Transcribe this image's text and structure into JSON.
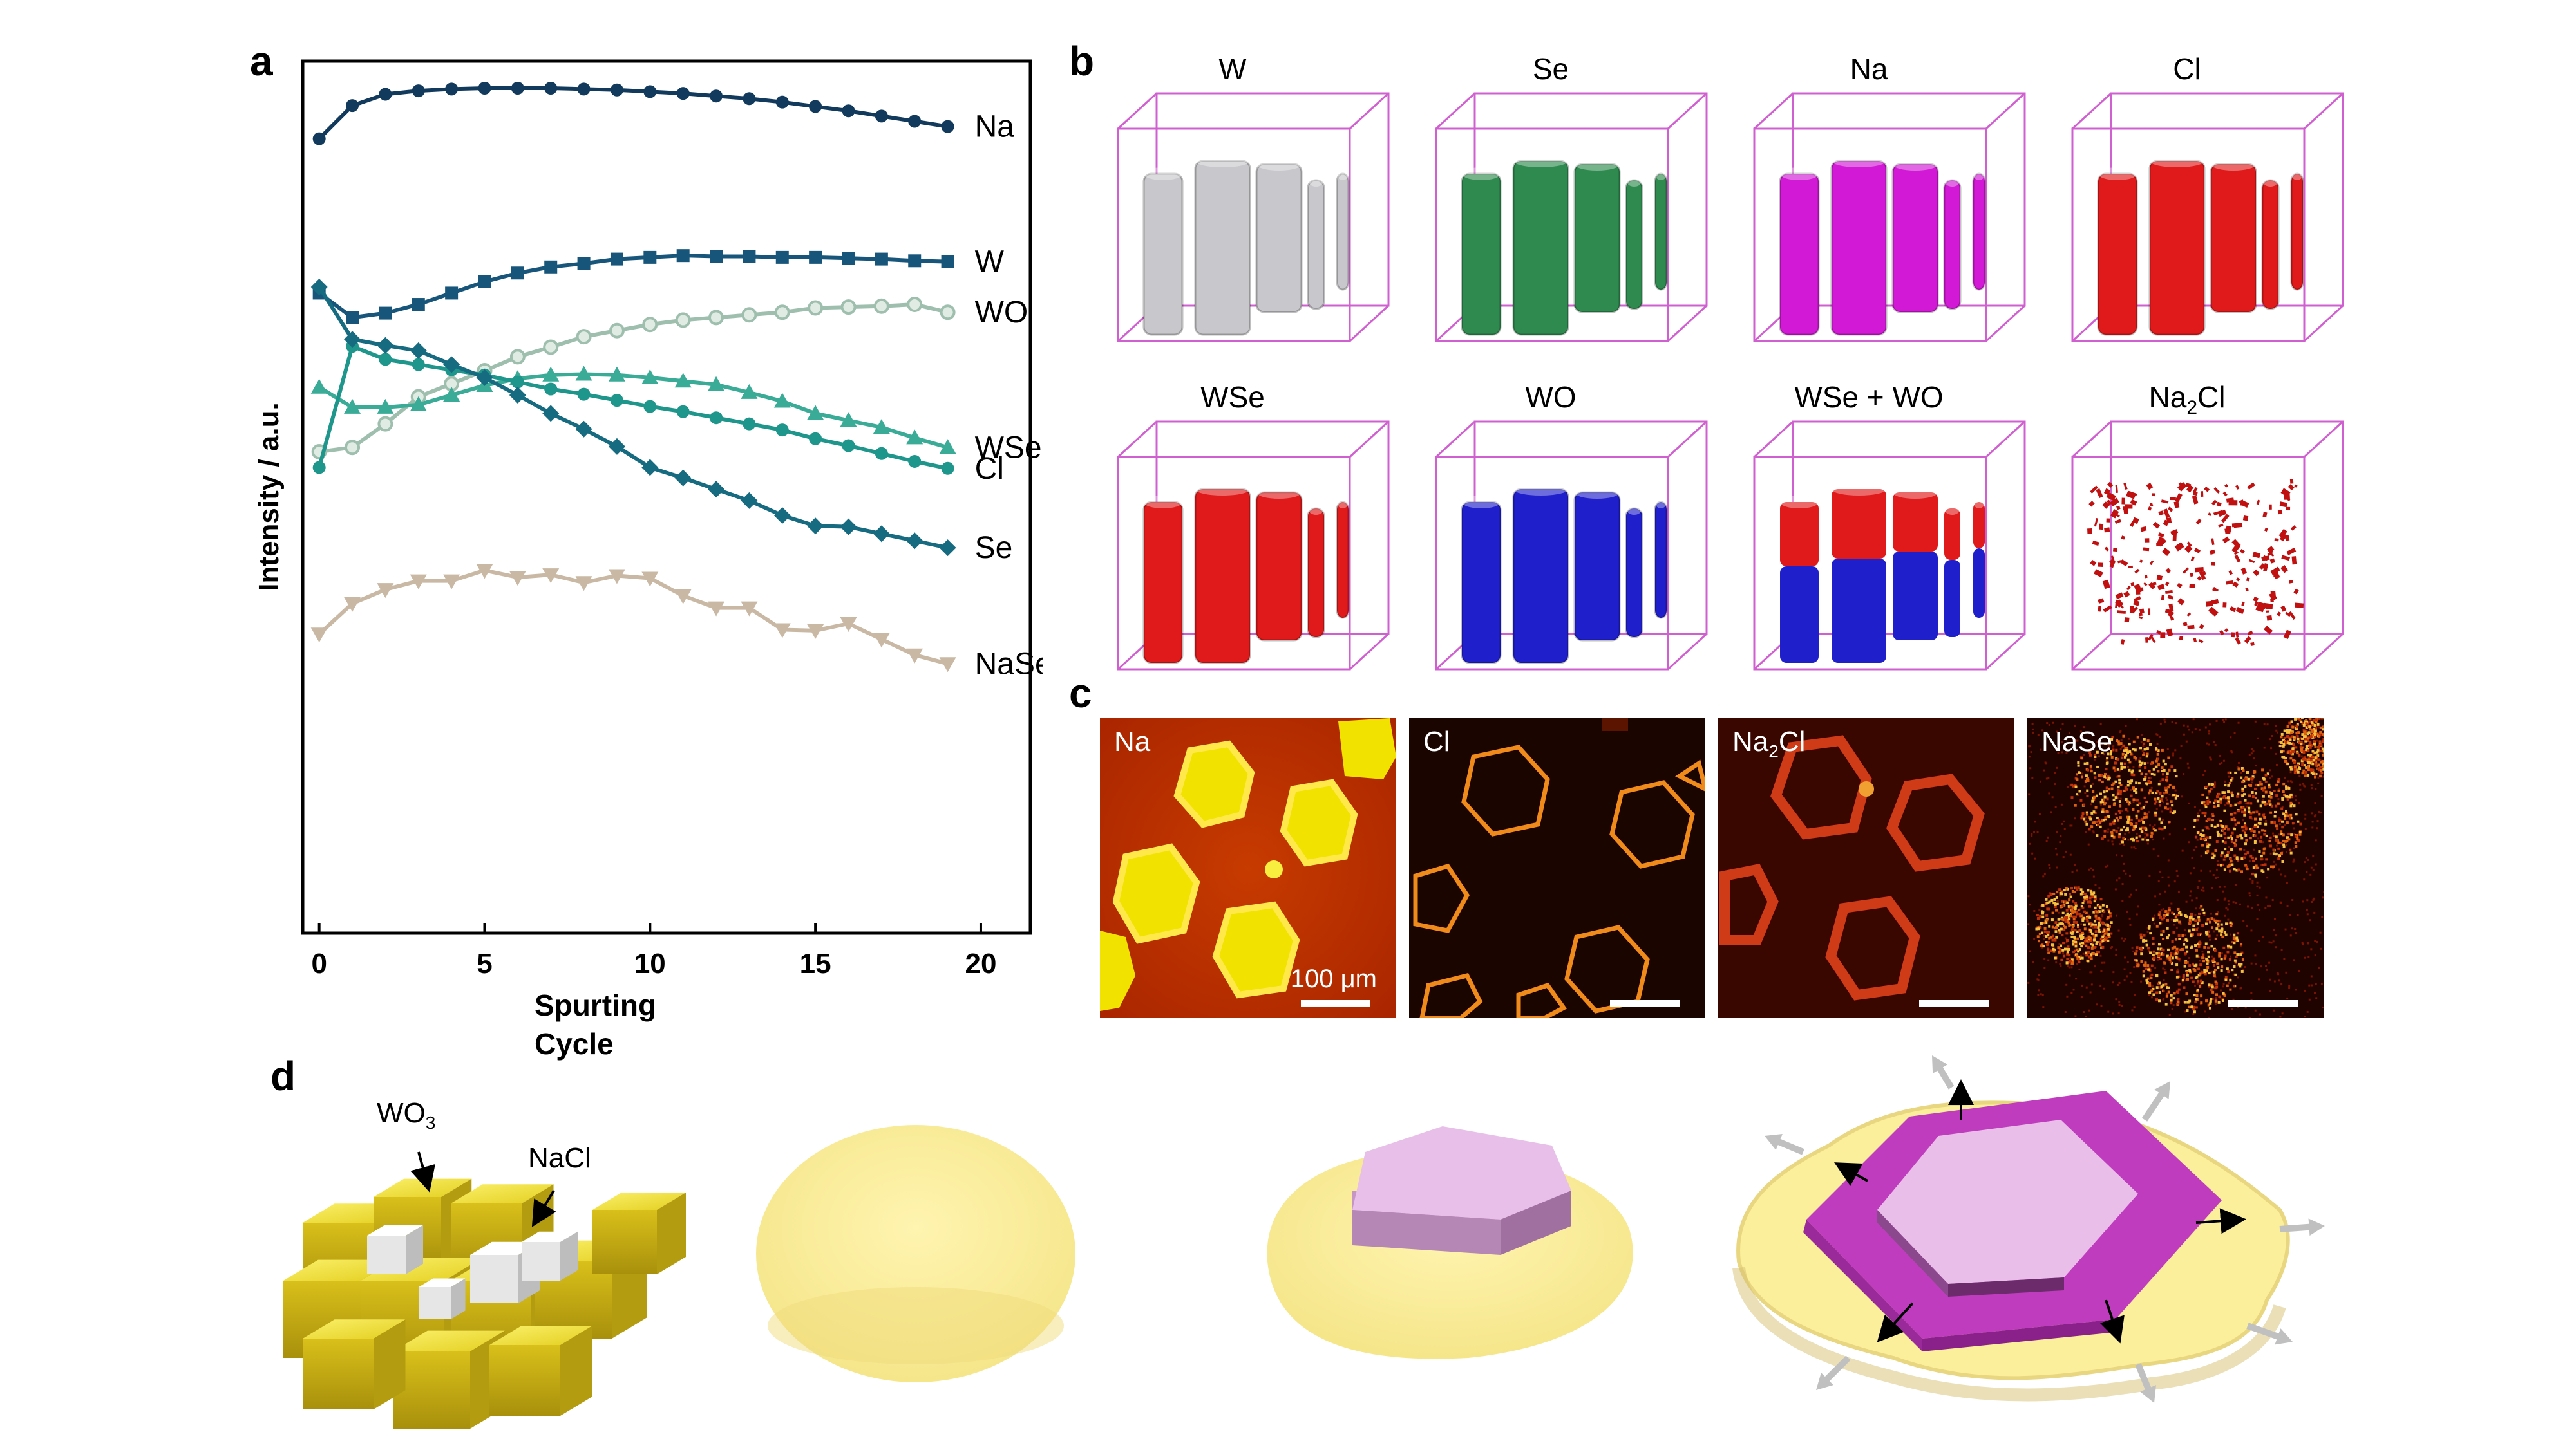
{
  "panels": {
    "a": "a",
    "b": "b",
    "c": "c",
    "d": "d"
  },
  "chart_data": {
    "type": "line",
    "xlabel": "Spurting Cycle",
    "ylabel": "Intensity / a.u.",
    "xlim": [
      -0.5,
      21.5
    ],
    "ylim": [
      0,
      1
    ],
    "xticks": [
      0,
      5,
      10,
      15,
      20
    ],
    "grid": false,
    "x": [
      0,
      1,
      2,
      3,
      4,
      5,
      6,
      7,
      8,
      9,
      10,
      11,
      12,
      13,
      14,
      15,
      16,
      17,
      18,
      19
    ],
    "series": [
      {
        "name": "Na",
        "color": "#123a5c",
        "marker": "circle",
        "values": [
          0.911,
          0.949,
          0.962,
          0.966,
          0.968,
          0.969,
          0.969,
          0.969,
          0.968,
          0.967,
          0.965,
          0.963,
          0.96,
          0.957,
          0.953,
          0.948,
          0.943,
          0.937,
          0.931,
          0.925
        ]
      },
      {
        "name": "W",
        "color": "#17567a",
        "marker": "square",
        "values": [
          0.734,
          0.706,
          0.711,
          0.721,
          0.734,
          0.747,
          0.757,
          0.764,
          0.768,
          0.773,
          0.775,
          0.777,
          0.776,
          0.776,
          0.775,
          0.775,
          0.774,
          0.773,
          0.771,
          0.77
        ]
      },
      {
        "name": "WO",
        "color": "#9fbfae",
        "marker": "circle-open",
        "values": [
          0.552,
          0.557,
          0.584,
          0.615,
          0.63,
          0.645,
          0.661,
          0.672,
          0.684,
          0.691,
          0.698,
          0.703,
          0.706,
          0.709,
          0.712,
          0.717,
          0.718,
          0.719,
          0.721,
          0.712
        ]
      },
      {
        "name": "WSe",
        "color": "#39ab97",
        "marker": "triangle",
        "values": [
          0.626,
          0.603,
          0.603,
          0.606,
          0.617,
          0.628,
          0.636,
          0.64,
          0.641,
          0.64,
          0.637,
          0.633,
          0.629,
          0.62,
          0.61,
          0.596,
          0.588,
          0.58,
          0.568,
          0.557
        ]
      },
      {
        "name": "Cl",
        "color": "#1e968c",
        "marker": "circle",
        "values": [
          0.534,
          0.673,
          0.658,
          0.652,
          0.646,
          0.64,
          0.632,
          0.624,
          0.618,
          0.611,
          0.604,
          0.598,
          0.591,
          0.584,
          0.577,
          0.567,
          0.559,
          0.55,
          0.541,
          0.533
        ]
      },
      {
        "name": "Se",
        "color": "#166b80",
        "marker": "diamond",
        "values": [
          0.741,
          0.681,
          0.674,
          0.668,
          0.652,
          0.637,
          0.617,
          0.596,
          0.578,
          0.558,
          0.534,
          0.522,
          0.509,
          0.496,
          0.479,
          0.467,
          0.466,
          0.458,
          0.45,
          0.442
        ]
      },
      {
        "name": "NaSe",
        "color": "#c9b8a3",
        "marker": "triangle-down",
        "values": [
          0.343,
          0.378,
          0.394,
          0.404,
          0.404,
          0.416,
          0.408,
          0.411,
          0.402,
          0.41,
          0.407,
          0.387,
          0.373,
          0.373,
          0.348,
          0.347,
          0.355,
          0.337,
          0.319,
          0.309
        ]
      }
    ]
  },
  "panel_b": {
    "titles_row1": [
      "W",
      "Se",
      "Na",
      "Cl"
    ],
    "titles_row2": [
      "WSe",
      "WO",
      "WSe + WO"
    ],
    "na2cl": {
      "base": "Na",
      "sub": "2",
      "rest": "Cl"
    },
    "colors": {
      "W": "#c8c8cc",
      "Se": "#2e8a4e",
      "Na": "#d21ad6",
      "Cl": "#e01a1a",
      "WSe": "#e01a1a",
      "WO": "#1f1fcc",
      "box": "#d060d0"
    }
  },
  "panel_c": {
    "labels": [
      "Na",
      "Cl",
      "",
      "NaSe"
    ],
    "na2cl": {
      "base": "Na",
      "sub": "2",
      "rest": "Cl"
    },
    "scale": "100 μm"
  },
  "panel_d": {
    "wo3": {
      "base": "WO",
      "sub": "3"
    },
    "nacl": "NaCl",
    "colors": {
      "cube": "#e6d21e",
      "cube_side": "#b39c10",
      "salt": "#f2f2f2",
      "droplet": "#fbef9c",
      "hex_light": "#e8b8e6",
      "hex_dark": "#c040c0"
    }
  }
}
